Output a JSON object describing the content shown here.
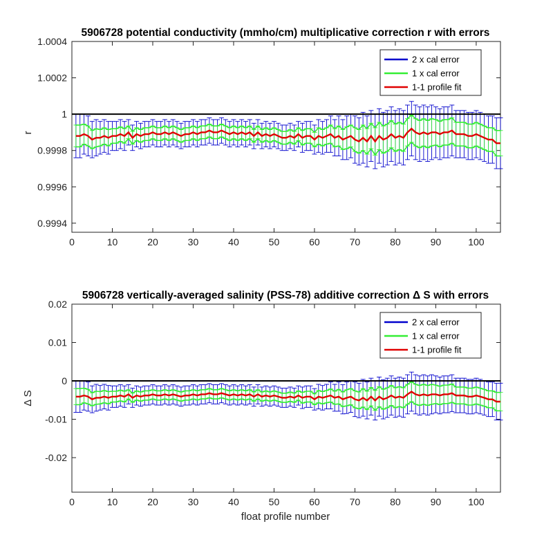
{
  "chart_data": [
    {
      "type": "line",
      "title": "5906728 potential conductivity (mmho/cm) multiplicative correction r with errors",
      "xlabel": "",
      "ylabel": "r",
      "xlim": [
        0,
        106
      ],
      "ylim": [
        0.99935,
        1.0004
      ],
      "xticks": [
        "0",
        "10",
        "20",
        "30",
        "40",
        "50",
        "60",
        "70",
        "80",
        "90",
        "100"
      ],
      "xtick_values": [
        0,
        10,
        20,
        30,
        40,
        50,
        60,
        70,
        80,
        90,
        100
      ],
      "yticks": [
        "0.9994",
        "0.9996",
        "0.9998",
        "1",
        "1.0002",
        "1.0004"
      ],
      "ytick_values": [
        0.9994,
        0.9996,
        0.9998,
        1.0,
        1.0002,
        1.0004
      ],
      "reference_line": 1.0,
      "legend": {
        "position": "top-right",
        "entries": [
          "2 x cal error",
          "1 x cal error",
          "1-1 profile fit"
        ]
      },
      "colors": {
        "two_sigma": "#0000cc",
        "one_sigma": "#33ee33",
        "fit": "#e00000",
        "reference": "#000000"
      },
      "x": [
        1,
        2,
        3,
        4,
        5,
        6,
        7,
        8,
        9,
        10,
        11,
        12,
        13,
        14,
        15,
        16,
        17,
        18,
        19,
        20,
        21,
        22,
        23,
        24,
        25,
        26,
        27,
        28,
        29,
        30,
        31,
        32,
        33,
        34,
        35,
        36,
        37,
        38,
        39,
        40,
        41,
        42,
        43,
        44,
        45,
        46,
        47,
        48,
        49,
        50,
        51,
        52,
        53,
        54,
        55,
        56,
        57,
        58,
        59,
        60,
        61,
        62,
        63,
        64,
        65,
        66,
        67,
        68,
        69,
        70,
        71,
        72,
        73,
        74,
        75,
        76,
        77,
        78,
        79,
        80,
        81,
        82,
        83,
        84,
        85,
        86,
        87,
        88,
        89,
        90,
        91,
        92,
        93,
        94,
        95,
        96,
        97,
        98,
        99,
        100,
        101,
        102,
        103,
        104,
        105,
        106
      ],
      "series": [
        {
          "name": "1-1 profile fit",
          "role": "fit",
          "values": [
            0.99988,
            0.99988,
            0.99989,
            0.99988,
            0.99986,
            0.99987,
            0.99987,
            0.99988,
            0.99987,
            0.99988,
            0.99988,
            0.99989,
            0.99988,
            0.9999,
            0.99987,
            0.99989,
            0.99988,
            0.99989,
            0.99989,
            0.9999,
            0.99989,
            0.99989,
            0.9999,
            0.99989,
            0.9999,
            0.99989,
            0.99988,
            0.99989,
            0.99989,
            0.9999,
            0.99989,
            0.9999,
            0.9999,
            0.99991,
            0.9999,
            0.9999,
            0.99991,
            0.9999,
            0.99989,
            0.9999,
            0.99989,
            0.9999,
            0.99989,
            0.9999,
            0.99988,
            0.9999,
            0.99988,
            0.99989,
            0.99988,
            0.99989,
            0.99988,
            0.99987,
            0.99987,
            0.99988,
            0.99987,
            0.99989,
            0.99987,
            0.99988,
            0.99988,
            0.99986,
            0.99988,
            0.99987,
            0.99988,
            0.99989,
            0.99987,
            0.99988,
            0.99986,
            0.99987,
            0.99988,
            0.99986,
            0.99985,
            0.99987,
            0.99985,
            0.99988,
            0.99985,
            0.99988,
            0.99986,
            0.99987,
            0.99989,
            0.99987,
            0.99988,
            0.99987,
            0.9999,
            0.99992,
            0.9999,
            0.99989,
            0.9999,
            0.99989,
            0.9999,
            0.9999,
            0.99989,
            0.9999,
            0.9999,
            0.99991,
            0.99989,
            0.99989,
            0.99989,
            0.99988,
            0.99988,
            0.99989,
            0.99988,
            0.99987,
            0.99986,
            0.99986,
            0.99984,
            0.99984
          ]
        },
        {
          "name": "2 x cal error",
          "role": "two_sigma_half_width",
          "values": [
            0.00012,
            0.00012,
            0.00011,
            0.00011,
            0.0001,
            0.0001,
            9e-05,
            9e-05,
            9e-05,
            8e-05,
            8e-05,
            8e-05,
            8e-05,
            7e-05,
            7e-05,
            7e-05,
            7e-05,
            7e-05,
            7e-05,
            7e-05,
            7e-05,
            7e-05,
            7e-05,
            7e-05,
            7e-05,
            7e-05,
            7e-05,
            7e-05,
            7e-05,
            7e-05,
            7e-05,
            7e-05,
            7e-05,
            7e-05,
            7e-05,
            7e-05,
            7e-05,
            7e-05,
            7e-05,
            7e-05,
            7e-05,
            7e-05,
            7e-05,
            7e-05,
            7e-05,
            7e-05,
            7e-05,
            7e-05,
            7e-05,
            7e-05,
            7e-05,
            7e-05,
            7e-05,
            7e-05,
            7e-05,
            7e-05,
            8e-05,
            8e-05,
            8e-05,
            8e-05,
            9e-05,
            9e-05,
            9e-05,
            0.0001,
            0.0001,
            0.00011,
            0.00011,
            0.00012,
            0.00012,
            0.00013,
            0.00013,
            0.00014,
            0.00014,
            0.00014,
            0.00015,
            0.00015,
            0.00015,
            0.00015,
            0.00015,
            0.00015,
            0.00015,
            0.00015,
            0.00015,
            0.00015,
            0.00015,
            0.00015,
            0.00015,
            0.00015,
            0.00015,
            0.00014,
            0.00014,
            0.00014,
            0.00014,
            0.00014,
            0.00013,
            0.00013,
            0.00013,
            0.00013,
            0.00013,
            0.00013,
            0.00013,
            0.00013,
            0.00013,
            0.00013,
            0.00014,
            0.00014
          ]
        },
        {
          "name": "1 x cal error",
          "role": "one_sigma_half_width",
          "values": [
            6e-05,
            6e-05,
            5.5e-05,
            5.5e-05,
            5e-05,
            5e-05,
            4.5e-05,
            4.5e-05,
            4.5e-05,
            4e-05,
            4e-05,
            4e-05,
            4e-05,
            3.5e-05,
            3.5e-05,
            3.5e-05,
            3.5e-05,
            3.5e-05,
            3.5e-05,
            3.5e-05,
            3.5e-05,
            3.5e-05,
            3.5e-05,
            3.5e-05,
            3.5e-05,
            3.5e-05,
            3.5e-05,
            3.5e-05,
            3.5e-05,
            3.5e-05,
            3.5e-05,
            3.5e-05,
            3.5e-05,
            3.5e-05,
            3.5e-05,
            3.5e-05,
            3.5e-05,
            3.5e-05,
            3.5e-05,
            3.5e-05,
            3.5e-05,
            3.5e-05,
            3.5e-05,
            3.5e-05,
            3.5e-05,
            3.5e-05,
            3.5e-05,
            3.5e-05,
            3.5e-05,
            3.5e-05,
            3.5e-05,
            3.5e-05,
            3.5e-05,
            3.5e-05,
            3.5e-05,
            3.5e-05,
            4e-05,
            4e-05,
            4e-05,
            4e-05,
            4.5e-05,
            4.5e-05,
            4.5e-05,
            5e-05,
            5e-05,
            5.5e-05,
            5.5e-05,
            6e-05,
            6e-05,
            6.5e-05,
            6.5e-05,
            7e-05,
            7e-05,
            7e-05,
            7.5e-05,
            7.5e-05,
            7.5e-05,
            7.5e-05,
            7.5e-05,
            7.5e-05,
            7.5e-05,
            7.5e-05,
            7.5e-05,
            7.5e-05,
            7.5e-05,
            7.5e-05,
            7.5e-05,
            7.5e-05,
            7.5e-05,
            7e-05,
            7e-05,
            7e-05,
            7e-05,
            7e-05,
            6.5e-05,
            6.5e-05,
            6.5e-05,
            6.5e-05,
            6.5e-05,
            6.5e-05,
            6.5e-05,
            6.5e-05,
            6.5e-05,
            6.5e-05,
            7e-05,
            7e-05
          ]
        }
      ]
    },
    {
      "type": "line",
      "title": "5906728 vertically-averaged salinity (PSS-78) additive correction Δ S with errors",
      "xlabel": "float profile number",
      "ylabel": "Δ S",
      "xlim": [
        0,
        106
      ],
      "ylim": [
        -0.029,
        0.02
      ],
      "xticks": [
        "0",
        "10",
        "20",
        "30",
        "40",
        "50",
        "60",
        "70",
        "80",
        "90",
        "100"
      ],
      "xtick_values": [
        0,
        10,
        20,
        30,
        40,
        50,
        60,
        70,
        80,
        90,
        100
      ],
      "yticks": [
        "-0.02",
        "-0.01",
        "0",
        "0.01",
        "0.02"
      ],
      "ytick_values": [
        -0.02,
        -0.01,
        0,
        0.01,
        0.02
      ],
      "reference_line": 0,
      "legend": {
        "position": "top-right",
        "entries": [
          "2 x cal error",
          "1 x cal error",
          "1-1 profile fit"
        ]
      },
      "colors": {
        "two_sigma": "#0000cc",
        "one_sigma": "#33ee33",
        "fit": "#e00000",
        "reference": "#000000"
      },
      "x": [
        1,
        2,
        3,
        4,
        5,
        6,
        7,
        8,
        9,
        10,
        11,
        12,
        13,
        14,
        15,
        16,
        17,
        18,
        19,
        20,
        21,
        22,
        23,
        24,
        25,
        26,
        27,
        28,
        29,
        30,
        31,
        32,
        33,
        34,
        35,
        36,
        37,
        38,
        39,
        40,
        41,
        42,
        43,
        44,
        45,
        46,
        47,
        48,
        49,
        50,
        51,
        52,
        53,
        54,
        55,
        56,
        57,
        58,
        59,
        60,
        61,
        62,
        63,
        64,
        65,
        66,
        67,
        68,
        69,
        70,
        71,
        72,
        73,
        74,
        75,
        76,
        77,
        78,
        79,
        80,
        81,
        82,
        83,
        84,
        85,
        86,
        87,
        88,
        89,
        90,
        91,
        92,
        93,
        94,
        95,
        96,
        97,
        98,
        99,
        100,
        101,
        102,
        103,
        104,
        105,
        106
      ],
      "series": [
        {
          "name": "1-1 profile fit",
          "role": "fit",
          "values": [
            -0.0041,
            -0.0041,
            -0.0038,
            -0.0041,
            -0.0048,
            -0.0044,
            -0.0044,
            -0.0041,
            -0.0044,
            -0.0041,
            -0.0041,
            -0.0038,
            -0.0041,
            -0.0035,
            -0.0044,
            -0.0038,
            -0.0041,
            -0.0038,
            -0.0038,
            -0.0035,
            -0.0038,
            -0.0038,
            -0.0035,
            -0.0038,
            -0.0035,
            -0.0038,
            -0.0041,
            -0.0038,
            -0.0038,
            -0.0035,
            -0.0038,
            -0.0035,
            -0.0035,
            -0.0032,
            -0.0035,
            -0.0035,
            -0.0032,
            -0.0035,
            -0.0038,
            -0.0035,
            -0.0038,
            -0.0035,
            -0.0038,
            -0.0035,
            -0.0041,
            -0.0035,
            -0.0041,
            -0.0038,
            -0.0041,
            -0.0038,
            -0.0041,
            -0.0044,
            -0.0044,
            -0.0041,
            -0.0044,
            -0.0038,
            -0.0044,
            -0.0041,
            -0.0041,
            -0.0048,
            -0.0041,
            -0.0044,
            -0.0041,
            -0.0038,
            -0.0044,
            -0.0041,
            -0.0048,
            -0.0044,
            -0.0041,
            -0.0048,
            -0.0051,
            -0.0044,
            -0.0051,
            -0.0041,
            -0.0051,
            -0.0041,
            -0.0048,
            -0.0044,
            -0.0038,
            -0.0044,
            -0.0041,
            -0.0044,
            -0.0035,
            -0.0028,
            -0.0035,
            -0.0038,
            -0.0035,
            -0.0038,
            -0.0035,
            -0.0035,
            -0.0038,
            -0.0035,
            -0.0035,
            -0.0032,
            -0.0038,
            -0.0038,
            -0.0038,
            -0.0041,
            -0.0041,
            -0.0038,
            -0.0041,
            -0.0044,
            -0.0048,
            -0.0048,
            -0.0054,
            -0.0054
          ]
        },
        {
          "name": "2 x cal error",
          "role": "two_sigma_half_width",
          "values": [
            0.0041,
            0.0041,
            0.0038,
            0.0038,
            0.0035,
            0.0035,
            0.0032,
            0.0032,
            0.0032,
            0.0028,
            0.0028,
            0.0028,
            0.0028,
            0.0025,
            0.0025,
            0.0025,
            0.0025,
            0.0025,
            0.0025,
            0.0025,
            0.0025,
            0.0025,
            0.0025,
            0.0025,
            0.0025,
            0.0025,
            0.0025,
            0.0025,
            0.0025,
            0.0025,
            0.0025,
            0.0025,
            0.0025,
            0.0025,
            0.0025,
            0.0025,
            0.0025,
            0.0025,
            0.0025,
            0.0025,
            0.0025,
            0.0025,
            0.0025,
            0.0025,
            0.0025,
            0.0025,
            0.0025,
            0.0025,
            0.0025,
            0.0025,
            0.0025,
            0.0025,
            0.0025,
            0.0025,
            0.0025,
            0.0025,
            0.0028,
            0.0028,
            0.0028,
            0.0028,
            0.0032,
            0.0032,
            0.0032,
            0.0035,
            0.0035,
            0.0038,
            0.0038,
            0.0041,
            0.0041,
            0.0045,
            0.0045,
            0.0048,
            0.0048,
            0.0048,
            0.0051,
            0.0051,
            0.0051,
            0.0051,
            0.0051,
            0.0051,
            0.0051,
            0.0051,
            0.0051,
            0.0051,
            0.0051,
            0.0051,
            0.0051,
            0.0051,
            0.0051,
            0.0048,
            0.0048,
            0.0048,
            0.0048,
            0.0048,
            0.0045,
            0.0045,
            0.0045,
            0.0045,
            0.0045,
            0.0045,
            0.0045,
            0.0045,
            0.0045,
            0.0045,
            0.0048,
            0.0048
          ]
        },
        {
          "name": "1 x cal error",
          "role": "one_sigma_half_width",
          "values": [
            0.0021,
            0.0021,
            0.0019,
            0.0019,
            0.0017,
            0.0017,
            0.0016,
            0.0016,
            0.0016,
            0.0014,
            0.0014,
            0.0014,
            0.0014,
            0.0012,
            0.0012,
            0.0012,
            0.0012,
            0.0012,
            0.0012,
            0.0012,
            0.0012,
            0.0012,
            0.0012,
            0.0012,
            0.0012,
            0.0012,
            0.0012,
            0.0012,
            0.0012,
            0.0012,
            0.0012,
            0.0012,
            0.0012,
            0.0012,
            0.0012,
            0.0012,
            0.0012,
            0.0012,
            0.0012,
            0.0012,
            0.0012,
            0.0012,
            0.0012,
            0.0012,
            0.0012,
            0.0012,
            0.0012,
            0.0012,
            0.0012,
            0.0012,
            0.0012,
            0.0012,
            0.0012,
            0.0012,
            0.0012,
            0.0012,
            0.0014,
            0.0014,
            0.0014,
            0.0014,
            0.0016,
            0.0016,
            0.0016,
            0.0017,
            0.0017,
            0.0019,
            0.0019,
            0.0021,
            0.0021,
            0.0022,
            0.0022,
            0.0024,
            0.0024,
            0.0024,
            0.0026,
            0.0026,
            0.0026,
            0.0026,
            0.0026,
            0.0026,
            0.0026,
            0.0026,
            0.0026,
            0.0026,
            0.0026,
            0.0026,
            0.0026,
            0.0026,
            0.0026,
            0.0024,
            0.0024,
            0.0024,
            0.0024,
            0.0024,
            0.0022,
            0.0022,
            0.0022,
            0.0022,
            0.0022,
            0.0022,
            0.0022,
            0.0022,
            0.0022,
            0.0022,
            0.0024,
            0.0024
          ]
        }
      ]
    }
  ]
}
